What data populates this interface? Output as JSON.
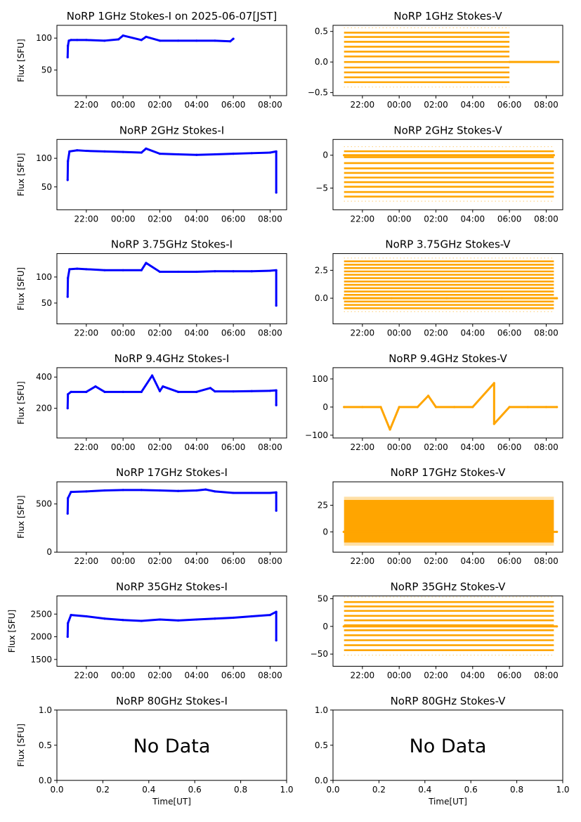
{
  "figure": {
    "x_tick_labels_time": [
      "22:00",
      "00:00",
      "02:00",
      "04:00",
      "06:00",
      "08:00"
    ],
    "stokes_i_color": "#0000ff",
    "stokes_v_color": "#ffa500",
    "no_data_text": "No Data",
    "x_label_bottom": "Time[UT]",
    "y_label_i": "Flux [SFU]"
  },
  "chart_data": [
    {
      "type": "scatter",
      "title": "NoRP 1GHz Stokes-I on 2025-06-07[JST]",
      "ylabel": "Flux [SFU]",
      "xlabel": "",
      "color": "#0000ff",
      "ylim": [
        10,
        120
      ],
      "yticks": [
        50,
        100
      ],
      "ytick_labels": [
        "50",
        "100"
      ],
      "xlim_hours": [
        20.4,
        32.9
      ],
      "xticks": [
        "22:00",
        "00:00",
        "02:00",
        "04:00",
        "06:00",
        "08:00"
      ],
      "series": [
        {
          "x": [
            "20:59",
            "21:00",
            "21:03",
            "21:10",
            "21:30",
            "22:00",
            "23:00",
            "23:45",
            "00:00",
            "01:00",
            "01:15",
            "02:00",
            "03:00",
            "04:00",
            "05:00",
            "05:50",
            "06:00"
          ],
          "y": [
            70,
            88,
            96,
            97,
            97,
            97,
            96,
            98,
            104,
            97,
            102,
            96,
            96,
            96,
            96,
            95,
            99
          ]
        }
      ]
    },
    {
      "type": "scatter",
      "title": "NoRP 1GHz Stokes-V",
      "ylabel": "",
      "xlabel": "",
      "color": "#ffa500",
      "ylim": [
        -0.55,
        0.6
      ],
      "yticks": [
        -0.5,
        0.0,
        0.5
      ],
      "ytick_labels": [
        "−0.5",
        "0.0",
        "0.5"
      ],
      "xlim_hours": [
        20.4,
        32.9
      ],
      "xticks": [
        "22:00",
        "00:00",
        "02:00",
        "04:00",
        "06:00",
        "08:00"
      ],
      "bands": {
        "x_start": "21:00",
        "x_end": "06:00",
        "levels": [
          -0.33,
          -0.25,
          -0.17,
          -0.09,
          0.0,
          0.09,
          0.17,
          0.25,
          0.33,
          0.41,
          0.48
        ]
      },
      "series": [
        {
          "x": [
            "06:00",
            "08:40"
          ],
          "y": [
            0.0,
            0.0
          ]
        }
      ]
    },
    {
      "type": "scatter",
      "title": "NoRP 2GHz Stokes-I",
      "ylabel": "Flux [SFU]",
      "xlabel": "",
      "color": "#0000ff",
      "ylim": [
        10,
        133
      ],
      "yticks": [
        50,
        100
      ],
      "ytick_labels": [
        "50",
        "100"
      ],
      "xlim_hours": [
        20.4,
        32.9
      ],
      "xticks": [
        "22:00",
        "00:00",
        "02:00",
        "04:00",
        "06:00",
        "08:00"
      ],
      "series": [
        {
          "x": [
            "20:59",
            "21:00",
            "21:05",
            "21:30",
            "22:00",
            "23:00",
            "00:00",
            "01:00",
            "01:15",
            "02:00",
            "03:00",
            "04:00",
            "05:00",
            "06:00",
            "07:00",
            "08:00",
            "08:20",
            "08:20"
          ],
          "y": [
            62,
            95,
            112,
            114,
            113,
            112,
            111,
            110,
            117,
            108,
            107,
            106,
            107,
            108,
            109,
            110,
            112,
            40
          ]
        }
      ]
    },
    {
      "type": "scatter",
      "title": "NoRP 2GHz Stokes-V",
      "ylabel": "",
      "xlabel": "",
      "color": "#ffa500",
      "ylim": [
        -8.3,
        2.4
      ],
      "yticks": [
        -5,
        0
      ],
      "ytick_labels": [
        "−5",
        "0"
      ],
      "xlim_hours": [
        20.4,
        32.9
      ],
      "xticks": [
        "22:00",
        "00:00",
        "02:00",
        "04:00",
        "06:00",
        "08:00"
      ],
      "bands": {
        "x_start": "21:00",
        "x_end": "08:25",
        "levels": [
          -6.3,
          -5.6,
          -4.8,
          -4.1,
          -3.4,
          -2.7,
          -2.0,
          -1.2,
          -0.3,
          0.6
        ]
      },
      "series": [
        {
          "x": [
            "21:00",
            "08:25"
          ],
          "y": [
            0.0,
            0.0
          ]
        }
      ]
    },
    {
      "type": "scatter",
      "title": "NoRP 3.75GHz Stokes-I",
      "ylabel": "Flux [SFU]",
      "xlabel": "",
      "color": "#0000ff",
      "ylim": [
        10,
        145
      ],
      "yticks": [
        50,
        100
      ],
      "ytick_labels": [
        "50",
        "100"
      ],
      "xlim_hours": [
        20.4,
        32.9
      ],
      "xticks": [
        "22:00",
        "00:00",
        "02:00",
        "04:00",
        "06:00",
        "08:00"
      ],
      "series": [
        {
          "x": [
            "20:59",
            "21:00",
            "21:05",
            "21:30",
            "22:00",
            "23:00",
            "00:00",
            "01:00",
            "01:15",
            "02:00",
            "03:00",
            "04:00",
            "05:00",
            "06:00",
            "07:00",
            "08:00",
            "08:20",
            "08:20"
          ],
          "y": [
            62,
            98,
            115,
            116,
            115,
            113,
            113,
            113,
            127,
            110,
            110,
            110,
            111,
            111,
            111,
            112,
            113,
            45
          ]
        }
      ]
    },
    {
      "type": "scatter",
      "title": "NoRP 3.75GHz Stokes-V",
      "ylabel": "",
      "xlabel": "",
      "color": "#ffa500",
      "ylim": [
        -2.3,
        4.0
      ],
      "yticks": [
        0.0,
        2.5
      ],
      "ytick_labels": [
        "0.0",
        "2.5"
      ],
      "xlim_hours": [
        20.4,
        32.9
      ],
      "xticks": [
        "22:00",
        "00:00",
        "02:00",
        "04:00",
        "06:00",
        "08:00"
      ],
      "bands": {
        "x_start": "21:00",
        "x_end": "08:25",
        "levels": [
          -0.9,
          -0.6,
          -0.3,
          0.0,
          0.3,
          0.6,
          0.9,
          1.2,
          1.5,
          1.8,
          2.1,
          2.4,
          2.7,
          3.0,
          3.3
        ]
      },
      "series": [
        {
          "x": [
            "21:00",
            "23:35",
            "02:35",
            "05:35",
            "08:35"
          ],
          "y": [
            0.0,
            0.0,
            0.0,
            0.0,
            0.0
          ]
        }
      ]
    },
    {
      "type": "scatter",
      "title": "NoRP 9.4GHz Stokes-I",
      "ylabel": "Flux [SFU]",
      "xlabel": "",
      "color": "#0000ff",
      "ylim": [
        10,
        460
      ],
      "yticks": [
        200,
        400
      ],
      "ytick_labels": [
        "200",
        "400"
      ],
      "xlim_hours": [
        20.4,
        32.9
      ],
      "xticks": [
        "22:00",
        "00:00",
        "02:00",
        "04:00",
        "06:00",
        "08:00"
      ],
      "series": [
        {
          "x": [
            "20:59",
            "21:00",
            "21:10",
            "22:00",
            "22:30",
            "23:00",
            "00:00",
            "01:00",
            "01:35",
            "02:00",
            "02:10",
            "03:00",
            "04:00",
            "04:45",
            "05:00",
            "06:00",
            "07:00",
            "08:00",
            "08:20",
            "08:20"
          ],
          "y": [
            200,
            290,
            305,
            305,
            340,
            305,
            305,
            305,
            410,
            310,
            340,
            305,
            305,
            330,
            308,
            308,
            310,
            312,
            315,
            220
          ]
        }
      ]
    },
    {
      "type": "scatter",
      "title": "NoRP 9.4GHz Stokes-V",
      "ylabel": "",
      "xlabel": "",
      "color": "#ffa500",
      "ylim": [
        -110,
        140
      ],
      "yticks": [
        -100,
        0,
        100
      ],
      "ytick_labels": [
        "−100",
        "0",
        "100"
      ],
      "xlim_hours": [
        20.4,
        32.9
      ],
      "xticks": [
        "22:00",
        "00:00",
        "02:00",
        "04:00",
        "06:00",
        "08:00"
      ],
      "series": [
        {
          "x": [
            "21:00",
            "22:00",
            "23:00",
            "23:30",
            "00:00",
            "01:00",
            "01:35",
            "02:00",
            "03:00",
            "04:00",
            "05:10",
            "05:10",
            "06:00",
            "07:00",
            "08:00",
            "08:35"
          ],
          "y": [
            0,
            0,
            0,
            -80,
            0,
            0,
            40,
            0,
            0,
            0,
            85,
            -60,
            0,
            0,
            0,
            0
          ]
        }
      ]
    },
    {
      "type": "scatter",
      "title": "NoRP 17GHz Stokes-I",
      "ylabel": "Flux [SFU]",
      "xlabel": "",
      "color": "#0000ff",
      "ylim": [
        0,
        730
      ],
      "yticks": [
        0,
        500
      ],
      "ytick_labels": [
        "0",
        "500"
      ],
      "xlim_hours": [
        20.4,
        32.9
      ],
      "xticks": [
        "22:00",
        "00:00",
        "02:00",
        "04:00",
        "06:00",
        "08:00"
      ],
      "series": [
        {
          "x": [
            "20:59",
            "21:00",
            "21:10",
            "22:00",
            "23:00",
            "00:00",
            "01:00",
            "02:00",
            "03:00",
            "04:00",
            "04:30",
            "05:00",
            "06:00",
            "07:00",
            "08:00",
            "08:20",
            "08:20"
          ],
          "y": [
            400,
            560,
            625,
            630,
            640,
            645,
            645,
            640,
            635,
            640,
            650,
            630,
            615,
            615,
            615,
            620,
            430
          ]
        }
      ]
    },
    {
      "type": "scatter",
      "title": "NoRP 17GHz Stokes-V",
      "ylabel": "",
      "xlabel": "",
      "color": "#ffa500",
      "ylim": [
        -19,
        47
      ],
      "yticks": [
        0,
        25
      ],
      "ytick_labels": [
        "0",
        "25"
      ],
      "xlim_hours": [
        20.4,
        32.9
      ],
      "xticks": [
        "22:00",
        "00:00",
        "02:00",
        "04:00",
        "06:00",
        "08:00"
      ],
      "band_range": {
        "x_start": "21:00",
        "x_end": "08:25",
        "y_low": -10,
        "y_high": 30
      },
      "series": [
        {
          "x": [
            "20:59",
            "08:35"
          ],
          "y": [
            0,
            0
          ]
        }
      ]
    },
    {
      "type": "scatter",
      "title": "NoRP 35GHz Stokes-I",
      "ylabel": "Flux [SFU]",
      "xlabel": "",
      "color": "#0000ff",
      "ylim": [
        1350,
        2900
      ],
      "yticks": [
        1500,
        2000,
        2500
      ],
      "ytick_labels": [
        "1500",
        "2000",
        "2500"
      ],
      "xlim_hours": [
        20.4,
        32.9
      ],
      "xticks": [
        "22:00",
        "00:00",
        "02:00",
        "04:00",
        "06:00",
        "08:00"
      ],
      "series": [
        {
          "x": [
            "20:59",
            "21:00",
            "21:10",
            "22:00",
            "23:00",
            "00:00",
            "01:00",
            "02:00",
            "03:00",
            "04:00",
            "05:00",
            "06:00",
            "07:00",
            "08:00",
            "08:20",
            "08:20"
          ],
          "y": [
            2000,
            2300,
            2480,
            2450,
            2400,
            2370,
            2350,
            2380,
            2360,
            2380,
            2400,
            2420,
            2450,
            2480,
            2550,
            1920
          ]
        }
      ]
    },
    {
      "type": "scatter",
      "title": "NoRP 35GHz Stokes-V",
      "ylabel": "",
      "xlabel": "",
      "color": "#ffa500",
      "ylim": [
        -72,
        55
      ],
      "yticks": [
        -50,
        0,
        50
      ],
      "ytick_labels": [
        "−50",
        "0",
        "50"
      ],
      "xlim_hours": [
        20.4,
        32.9
      ],
      "xticks": [
        "22:00",
        "00:00",
        "02:00",
        "04:00",
        "06:00",
        "08:00"
      ],
      "bands": {
        "x_start": "21:00",
        "x_end": "08:25",
        "levels": [
          -43,
          -34,
          -25,
          -16,
          -7,
          2,
          11,
          19,
          28,
          36,
          44
        ]
      },
      "series": [
        {
          "x": [
            "20:59",
            "08:35"
          ],
          "y": [
            0,
            0
          ]
        }
      ]
    },
    {
      "type": "scatter",
      "title": "NoRP 80GHz Stokes-I",
      "ylabel": "Flux [SFU]",
      "xlabel": "Time[UT]",
      "xlim": [
        0,
        1
      ],
      "ylim": [
        0,
        1
      ],
      "xticks": [
        0.0,
        0.2,
        0.4,
        0.6,
        0.8,
        1.0
      ],
      "xtick_labels": [
        "0.0",
        "0.2",
        "0.4",
        "0.6",
        "0.8",
        "1.0"
      ],
      "yticks": [
        0.0,
        0.5,
        1.0
      ],
      "ytick_labels": [
        "0.0",
        "0.5",
        "1.0"
      ],
      "annotation": "No Data",
      "series": []
    },
    {
      "type": "scatter",
      "title": "NoRP 80GHz Stokes-V",
      "ylabel": "",
      "xlabel": "Time[UT]",
      "xlim": [
        0,
        1
      ],
      "ylim": [
        0,
        1
      ],
      "xticks": [
        0.0,
        0.2,
        0.4,
        0.6,
        0.8,
        1.0
      ],
      "xtick_labels": [
        "0.0",
        "0.2",
        "0.4",
        "0.6",
        "0.8",
        "1.0"
      ],
      "yticks": [
        0.0,
        0.5,
        1.0
      ],
      "ytick_labels": [
        "0.0",
        "0.5",
        "1.0"
      ],
      "annotation": "No Data",
      "series": []
    }
  ]
}
